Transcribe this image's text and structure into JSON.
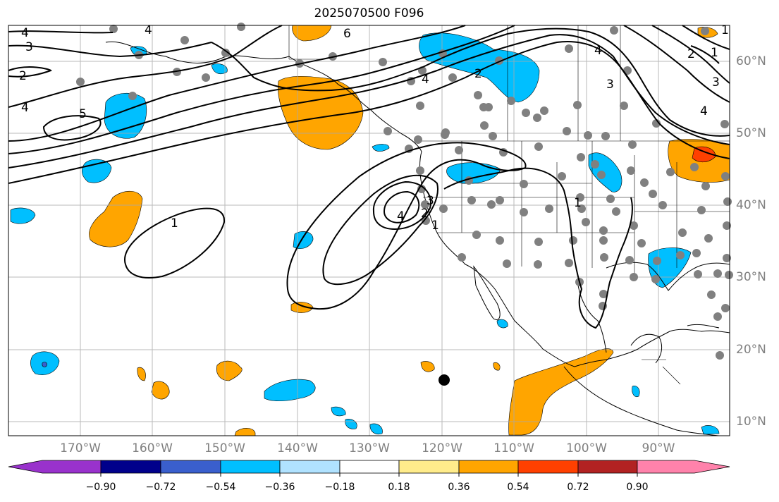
{
  "title": "2025070500 F096",
  "map": {
    "lon_labels": [
      "170°W",
      "160°W",
      "150°W",
      "140°W",
      "130°W",
      "120°W",
      "110°W",
      "100°W",
      "90°W"
    ],
    "lat_labels": [
      "60°N",
      "50°N",
      "40°N",
      "30°N",
      "20°N",
      "10°N"
    ],
    "contour_labels": [
      "4",
      "3",
      "2",
      "4",
      "5",
      "4",
      "6",
      "4",
      "2",
      "4",
      "3",
      "4",
      "3",
      "2",
      "1",
      "1",
      "4",
      "3",
      "2",
      "1",
      "1",
      "1"
    ],
    "shading_colors": {
      "negative_mid": "#00bfff",
      "positive_mid": "#ffa500",
      "positive_strong": "#ff4000",
      "station_dot": "#808080",
      "marker": "#000000"
    }
  },
  "colorbar": {
    "tick_labels": [
      "−0.90",
      "−0.72",
      "−0.54",
      "−0.36",
      "−0.18",
      "0.18",
      "0.36",
      "0.54",
      "0.72",
      "0.90"
    ],
    "colors": [
      "#9932cc",
      "#00008b",
      "#3a5fcd",
      "#00bfff",
      "#b0e2ff",
      "#ffffff",
      "#ffec8b",
      "#ffa500",
      "#ff4000",
      "#b22222",
      "#ff82ab"
    ]
  }
}
